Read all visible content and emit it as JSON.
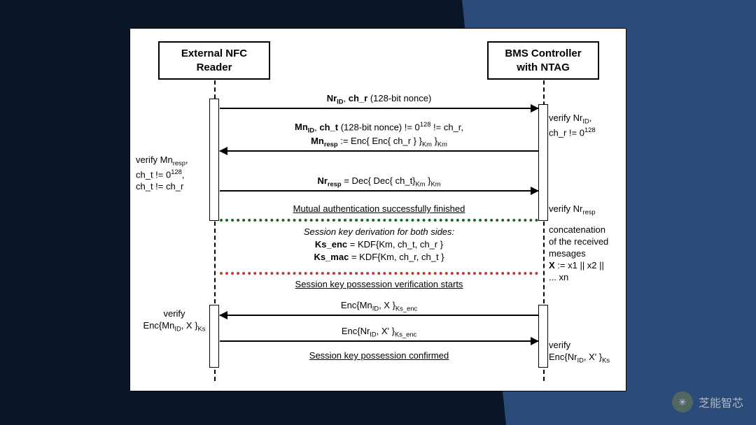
{
  "colors": {
    "page_bg": "#0a1628",
    "accent_bg": "#2a4a7a",
    "diagram_bg": "#ffffff",
    "line": "#000000",
    "divider_green": "#1a6b1a",
    "divider_red": "#c03a2a"
  },
  "participants": {
    "left": "External NFC\nReader",
    "right": "BMS Controller\nwith NTAG"
  },
  "messages": {
    "m1": {
      "dir": "right",
      "label_html": "<b>Nr<sub>ID</sub></b>, <b>ch_r</b> (128-bit nonce)"
    },
    "m2": {
      "dir": "left",
      "label_html": "<b>Mn<sub>ID</sub></b>, <b>ch_t</b> (128-bit nonce) != 0<sup>128</sup> != ch_r,<br><b>Mn<sub>resp</sub></b> := Enc{ Enc{ ch_r } }<sub>Km</sub> }<sub>Km</sub>"
    },
    "m3": {
      "dir": "right",
      "label_html": "<b>Nr<sub>resp</sub></b> = Dec{ Dec{ ch_t}<sub>Km</sub> }<sub>Km</sub>"
    },
    "m4": {
      "dir": "left",
      "label_html": "Enc{Mn<sub>ID</sub>, X }<sub>Ks_enc</sub>"
    },
    "m5": {
      "dir": "right",
      "label_html": "Enc{Nr<sub>ID</sub>, X' }<sub>Ks_enc</sub>"
    }
  },
  "dividers": {
    "d1": "Mutual authentication successfully finished",
    "d2": "Session key possession verification starts",
    "d3": "Session key possession confirmed"
  },
  "derivation": {
    "title": "Session key derivation for both sides",
    "line1_html": "<b>Ks_enc</b> = KDF{Km, ch_t, ch_r }",
    "line2_html": "<b>Ks_mac</b> = KDF{Km, ch_r, ch_t }"
  },
  "notes": {
    "n1_html": "verify Nr<sub>ID</sub>,<br>ch_r != 0<sup>128</sup>",
    "n2_html": "verify Mn<sub>resp</sub>,<br>ch_t != 0<sup>128</sup>,<br>ch_t != ch_r",
    "n3_html": "verify Nr<sub>resp</sub>",
    "n4_html": "concatenation<br>of the received<br>mesages<br><b>X</b> := x1 || x2 ||<br>... xn",
    "n5_html": "verify<br>Enc{Mn<sub>ID</sub>, X }<sub>Ks</sub>",
    "n6_html": "verify<br>Enc{Nr<sub>ID</sub>, X' }<sub>Ks</sub>"
  },
  "watermark": {
    "text": "芝能智芯",
    "icon_glyph": "✳"
  }
}
